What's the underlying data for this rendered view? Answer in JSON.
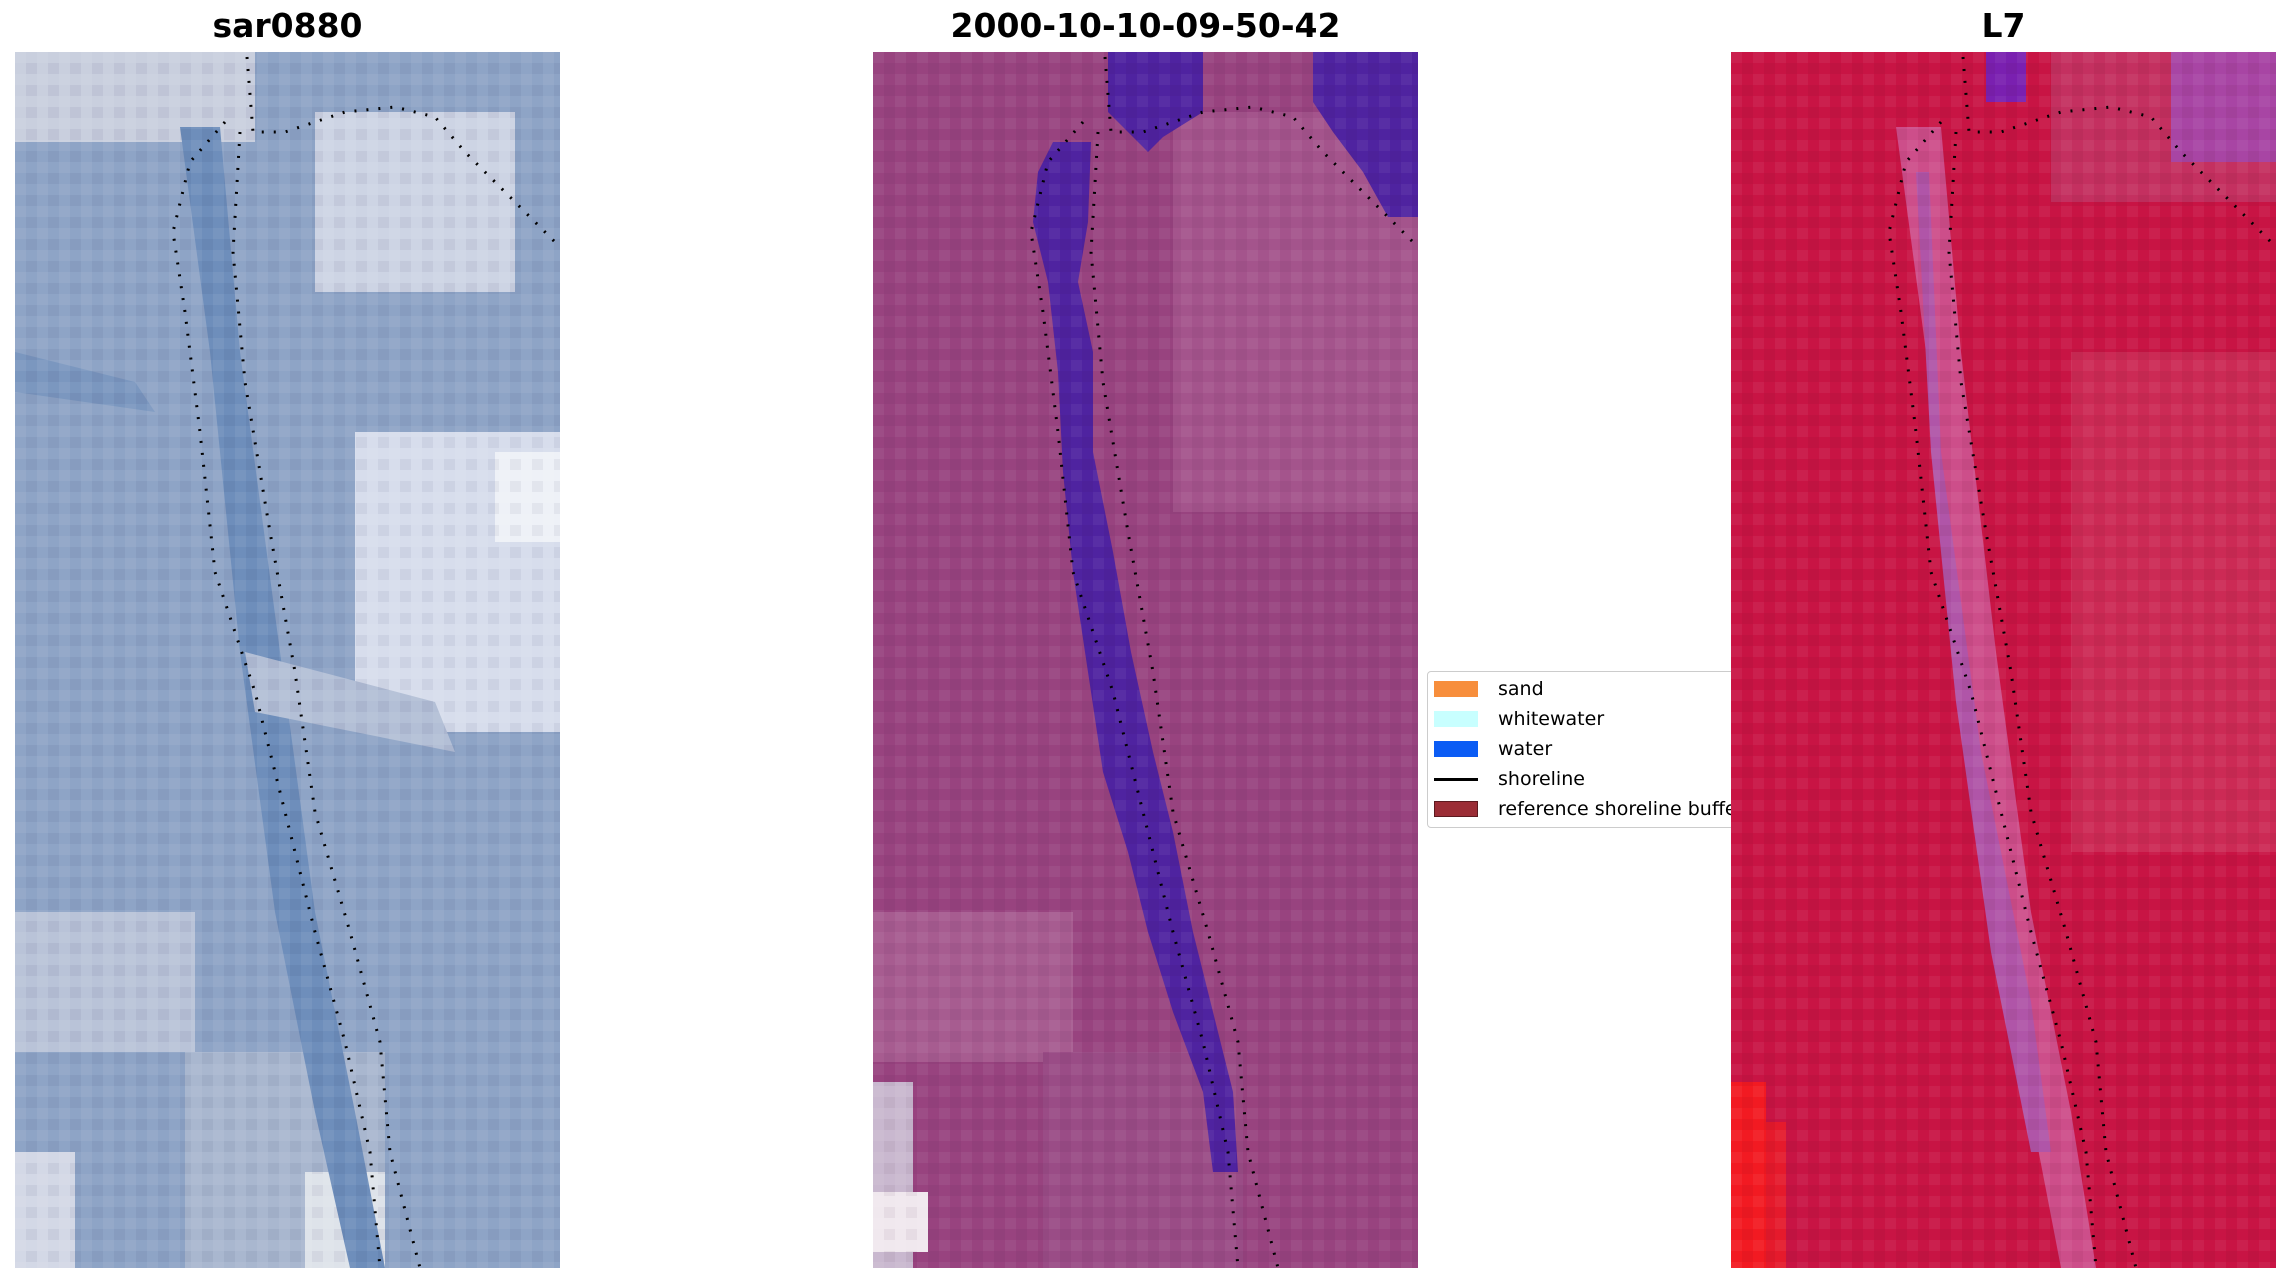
{
  "panels": [
    {
      "title": "sar0880"
    },
    {
      "title": "2000-10-10-09-50-42"
    },
    {
      "title": "L7"
    }
  ],
  "legend": {
    "items": [
      {
        "label": "sand",
        "color": "#f78e3c",
        "kind": "patch"
      },
      {
        "label": "whitewater",
        "color": "#c8ffff",
        "kind": "patch"
      },
      {
        "label": "water",
        "color": "#0b5cf4",
        "kind": "patch"
      },
      {
        "label": "shoreline",
        "color": "#000000",
        "kind": "line"
      },
      {
        "label": "reference shoreline buffer",
        "color": "#9b2d36",
        "kind": "patch"
      }
    ]
  },
  "colors": {
    "rgb_background": "#8ea4c6",
    "classified_background": "#98437f",
    "classified_water": "#4f23a0",
    "ndwi_background": "#c81444",
    "shoreline_dots": "#000000"
  }
}
